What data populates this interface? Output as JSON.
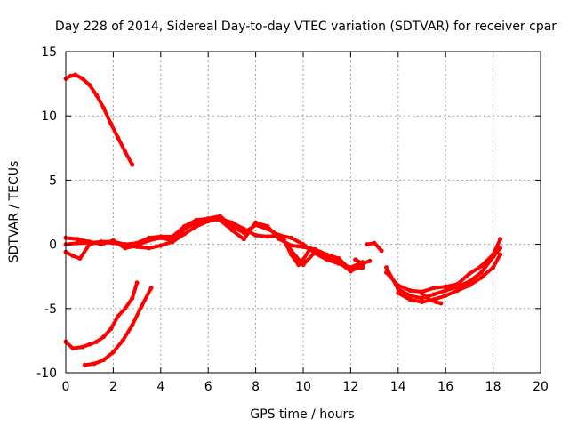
{
  "chart_data": {
    "type": "scatter",
    "title": "Day 228 of 2014, Sidereal Day-to-day VTEC variation (SDTVAR) for receiver cpar",
    "xlabel": "GPS time / hours",
    "ylabel": "SDTVAR / TECUs",
    "xlim": [
      0,
      20
    ],
    "ylim": [
      -10,
      15
    ],
    "x_ticks": [
      0,
      2,
      4,
      6,
      8,
      10,
      12,
      14,
      16,
      18,
      20
    ],
    "y_ticks": [
      -10,
      -5,
      0,
      5,
      10,
      15
    ],
    "x_tick_labels": [
      "0",
      "2",
      "4",
      "6",
      "8",
      "10",
      "12",
      "14",
      "16",
      "18",
      "20"
    ],
    "y_tick_labels": [
      "-10",
      "-5",
      "0",
      "5",
      "10",
      "15"
    ],
    "grid": true,
    "marker_color": "#ff0000",
    "series": [
      {
        "name": "arc-high",
        "x": [
          0.0,
          0.2,
          0.4,
          0.7,
          1.0,
          1.3,
          1.6,
          1.9,
          2.2,
          2.5,
          2.8
        ],
        "y": [
          12.9,
          13.1,
          13.2,
          12.9,
          12.4,
          11.6,
          10.6,
          9.4,
          8.3,
          7.2,
          6.2
        ]
      },
      {
        "name": "arc-low-1",
        "x": [
          0.0,
          0.3,
          0.7,
          1.0,
          1.3,
          1.6,
          1.9,
          2.2,
          2.5,
          2.8,
          3.0
        ],
        "y": [
          -7.6,
          -8.1,
          -8.0,
          -7.8,
          -7.6,
          -7.2,
          -6.6,
          -5.6,
          -5.0,
          -4.2,
          -3.0
        ]
      },
      {
        "name": "arc-low-2",
        "x": [
          0.8,
          1.2,
          1.6,
          2.0,
          2.4,
          2.8,
          3.2,
          3.6
        ],
        "y": [
          -9.4,
          -9.3,
          -9.0,
          -8.4,
          -7.5,
          -6.3,
          -4.8,
          -3.4
        ]
      },
      {
        "name": "main-1",
        "x": [
          0.0,
          0.5,
          1.0,
          1.5,
          2.0,
          2.5,
          3.0,
          3.5,
          4.0,
          4.5,
          5.0,
          5.5,
          6.0,
          6.5,
          7.0,
          7.5,
          8.0,
          8.5,
          9.0,
          9.5,
          10.0,
          10.5,
          11.0,
          11.5,
          12.0,
          12.5
        ],
        "y": [
          0.0,
          0.1,
          0.1,
          0.2,
          0.2,
          0.0,
          -0.2,
          -0.3,
          -0.1,
          0.2,
          0.8,
          1.4,
          1.8,
          2.0,
          1.7,
          1.2,
          0.7,
          0.6,
          0.7,
          0.5,
          0.0,
          -0.7,
          -1.2,
          -1.5,
          -1.8,
          -1.4
        ]
      },
      {
        "name": "main-2",
        "x": [
          0.0,
          0.5,
          1.0,
          1.5,
          2.0,
          2.5,
          3.0,
          3.5,
          4.0,
          4.5,
          5.0,
          5.5,
          6.0,
          6.5,
          7.0,
          7.5,
          8.0,
          8.5,
          9.0,
          9.5,
          10.0,
          10.5,
          11.0,
          11.5,
          12.0,
          12.5
        ],
        "y": [
          0.5,
          0.4,
          0.2,
          0.0,
          0.3,
          -0.3,
          -0.1,
          0.3,
          0.5,
          0.3,
          1.2,
          1.7,
          2.0,
          1.9,
          1.1,
          0.4,
          1.7,
          1.4,
          0.4,
          -0.1,
          -0.2,
          -0.4,
          -0.8,
          -1.1,
          -2.0,
          -1.8
        ]
      },
      {
        "name": "main-3",
        "x": [
          0.0,
          0.3,
          0.6,
          1.0,
          1.5,
          2.0,
          2.5,
          3.0,
          3.5,
          4.0,
          4.5,
          5.0,
          5.5,
          6.0,
          6.5,
          7.0,
          7.5,
          8.0,
          8.5,
          9.0,
          9.5,
          10.0,
          10.5,
          11.0,
          11.5,
          12.0,
          12.5
        ],
        "y": [
          -0.6,
          -0.9,
          -1.1,
          0.0,
          0.2,
          0.1,
          0.0,
          0.1,
          0.5,
          0.6,
          0.6,
          1.4,
          1.9,
          2.0,
          2.2,
          1.4,
          0.9,
          1.5,
          1.2,
          0.7,
          -0.5,
          -1.6,
          -0.6,
          -1.0,
          -1.4,
          -2.1,
          -1.6
        ]
      },
      {
        "name": "main-4",
        "x": [
          9.2,
          9.5,
          9.8,
          10.0,
          10.3
        ],
        "y": [
          0.3,
          -0.8,
          -1.6,
          -1.2,
          -0.3
        ]
      },
      {
        "name": "seg-13",
        "x": [
          12.7,
          13.0,
          13.3
        ],
        "y": [
          0.0,
          0.1,
          -0.5
        ]
      },
      {
        "name": "seg-14a",
        "x": [
          12.2,
          12.5,
          12.8
        ],
        "y": [
          -1.2,
          -1.5,
          -1.3
        ]
      },
      {
        "name": "main-5",
        "x": [
          13.5,
          14.0,
          14.5,
          15.0,
          15.5,
          16.0,
          16.5,
          17.0,
          17.5,
          18.0,
          18.3
        ],
        "y": [
          -1.8,
          -3.5,
          -4.0,
          -4.2,
          -3.9,
          -3.6,
          -3.3,
          -2.9,
          -2.2,
          -1.0,
          -0.3
        ]
      },
      {
        "name": "main-6",
        "x": [
          13.5,
          14.0,
          14.5,
          15.0,
          15.5,
          16.0,
          16.5,
          17.0,
          17.5,
          18.0,
          18.3
        ],
        "y": [
          -2.2,
          -3.2,
          -3.6,
          -3.7,
          -3.4,
          -3.3,
          -3.1,
          -2.3,
          -1.7,
          -0.8,
          0.4
        ]
      },
      {
        "name": "main-7",
        "x": [
          14.0,
          14.5,
          15.0,
          15.5,
          16.0,
          16.5,
          17.0,
          17.5,
          18.0,
          18.3
        ],
        "y": [
          -3.8,
          -4.3,
          -4.5,
          -4.3,
          -4.0,
          -3.6,
          -3.2,
          -2.6,
          -1.8,
          -0.8
        ]
      },
      {
        "name": "main-8",
        "x": [
          15.0,
          15.3,
          15.6,
          15.8
        ],
        "y": [
          -3.8,
          -4.3,
          -4.5,
          -4.6
        ]
      }
    ]
  }
}
